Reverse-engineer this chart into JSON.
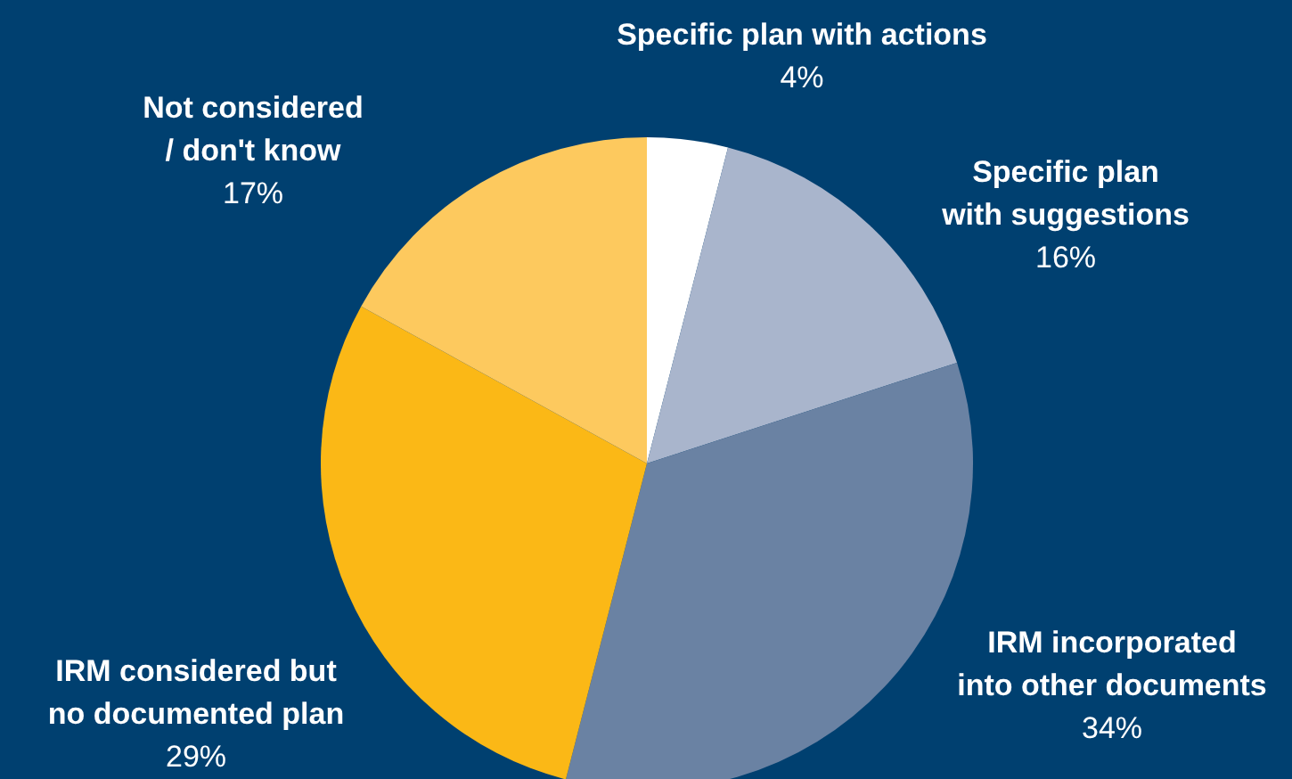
{
  "chart_data": {
    "type": "pie",
    "categories": [
      "Specific plan with actions",
      "Specific plan\nwith suggestions",
      "IRM incorporated\ninto other documents",
      "IRM considered but\nno documented plan",
      "Not considered\n/ don't know"
    ],
    "values": [
      4,
      16,
      34,
      29,
      17
    ],
    "colors": [
      "#ffffff",
      "#a9b5cc",
      "#6a82a3",
      "#fbb816",
      "#fdc95e"
    ],
    "value_labels": [
      "4%",
      "16%",
      "34%",
      "29%",
      "17%"
    ],
    "legend": false
  }
}
